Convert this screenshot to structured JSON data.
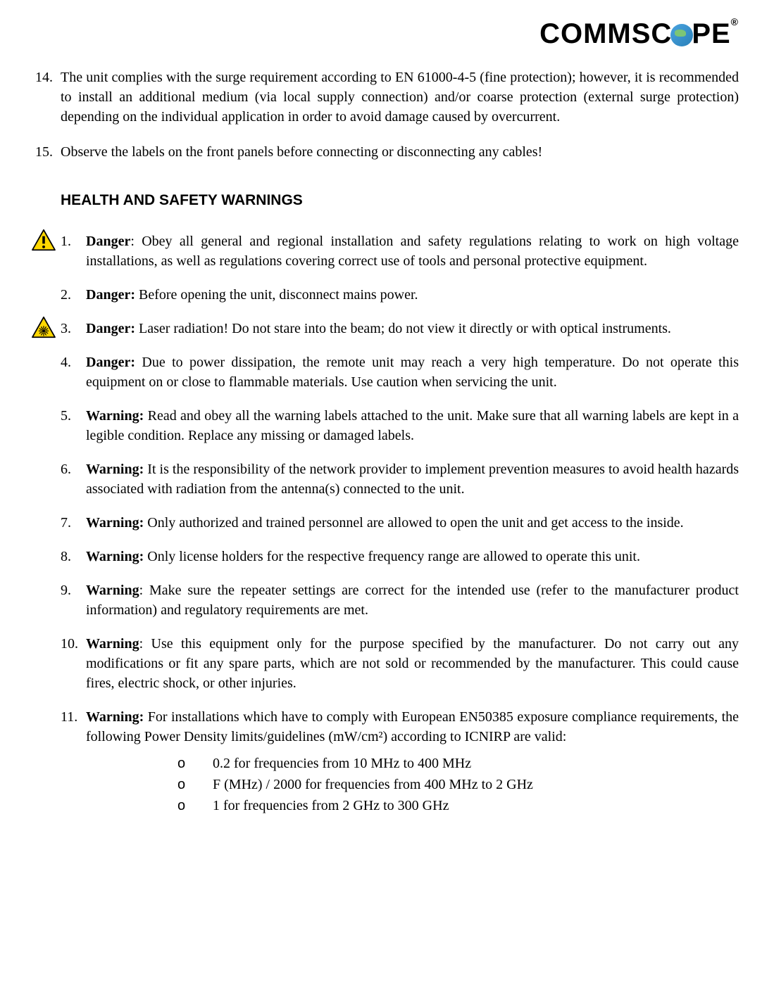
{
  "logo": {
    "part1": "COMMSC",
    "part2": "PE",
    "reg": "®"
  },
  "top_items": [
    {
      "num": "14.",
      "text": "The unit complies with the surge requirement according to EN 61000-4-5 (fine protection); however, it is recommended to install an additional medium (via local supply connection) and/or coarse protection (external surge protection) depending on the individual application in order to avoid damage caused by overcurrent."
    },
    {
      "num": "15.",
      "text": "Observe the labels on the front panels before connecting or disconnecting any cables!"
    }
  ],
  "section_heading": "HEALTH AND SAFETY WARNINGS",
  "warnings": [
    {
      "num": "1.",
      "label": "Danger",
      "sep": ": ",
      "text": "Obey all general and regional installation and safety regulations relating to work on high voltage installations, as well as regulations covering correct use of tools and personal protective equipment.",
      "icon": "exclamation"
    },
    {
      "num": "2.",
      "label": "Danger:",
      "sep": " ",
      "text": "Before opening the unit, disconnect mains power.",
      "icon": null
    },
    {
      "num": "3.",
      "label": "Danger:",
      "sep": " ",
      "text": "Laser radiation! Do not stare into the beam; do not view it directly or with optical instruments.",
      "icon": "laser"
    },
    {
      "num": "4.",
      "label": "Danger:",
      "sep": " ",
      "text": "Due to power dissipation, the remote unit may reach a very high temperature. Do not operate this equipment on or close to flammable materials. Use caution when servicing the unit.",
      "icon": null
    },
    {
      "num": "5.",
      "label": "Warning:",
      "sep": " ",
      "text": "Read and obey all the warning labels attached to the unit. Make sure that all warning labels are kept in a legible condition. Replace any missing or damaged labels.",
      "icon": null
    },
    {
      "num": "6.",
      "label": "Warning:",
      "sep": " ",
      "text": "It is the responsibility of the network provider to implement prevention measures to avoid health hazards associated with radiation from the antenna(s) connected to the unit.",
      "icon": null
    },
    {
      "num": "7.",
      "label": "Warning:",
      "sep": " ",
      "text": "Only authorized and trained personnel are allowed to open the unit and get access to the inside.",
      "icon": null
    },
    {
      "num": "8.",
      "label": "Warning:",
      "sep": " ",
      "text": "Only license holders for the respective frequency range are allowed to operate this unit.",
      "icon": null
    },
    {
      "num": "9.",
      "label": "Warning",
      "sep": ": ",
      "text": "Make sure the repeater settings are correct for the intended use (refer to the manufacturer product information) and regulatory requirements are met.",
      "icon": null
    },
    {
      "num": "10.",
      "label": "Warning",
      "sep": ": ",
      "text": "Use this equipment only for the purpose specified by the manufacturer. Do not carry out any modifications or fit any spare parts, which are not sold or recommended by the manufacturer. This could cause fires, electric shock, or other injuries.",
      "icon": null
    },
    {
      "num": "11.",
      "label": "Warning:",
      "sep": " ",
      "text": "For installations which have to comply with European EN50385 exposure compliance requirements, the following Power Density limits/guidelines (mW/cm²) according to ICNIRP are valid:",
      "icon": null,
      "sublist": [
        {
          "marker": "o",
          "text": "0.2 for frequencies from 10 MHz to 400 MHz"
        },
        {
          "marker": "o",
          "text": "F (MHz) / 2000 for frequencies from 400 MHz to 2 GHz"
        },
        {
          "marker": "o",
          "text": "1 for frequencies from 2 GHz to 300 GHz"
        }
      ]
    }
  ],
  "colors": {
    "text": "#000000",
    "background": "#ffffff",
    "warning_yellow": "#ffd700",
    "warning_border": "#000000",
    "laser_center": "#000000"
  }
}
